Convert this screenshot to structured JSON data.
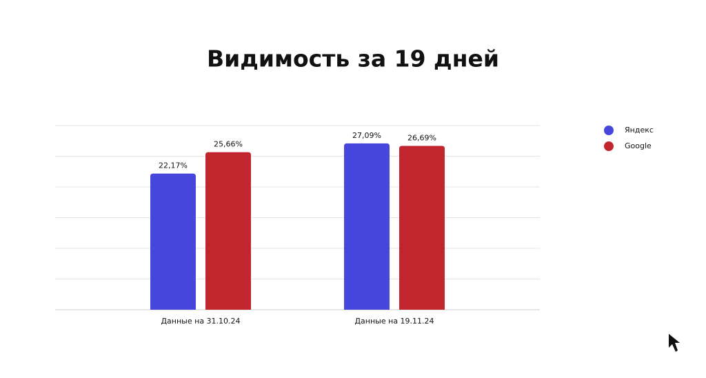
{
  "chart_data": {
    "type": "bar",
    "title": "Видимость за 19 дней",
    "categories": [
      "Данные на 31.10.24",
      "Данные на 19.11.24"
    ],
    "series": [
      {
        "name": "Яндекс",
        "color": "#4646dc",
        "values": [
          22.17,
          27.09
        ],
        "value_labels": [
          "22,17%",
          "27,09%"
        ]
      },
      {
        "name": "Google",
        "color": "#c1262f",
        "values": [
          25.66,
          26.69
        ],
        "value_labels": [
          "25,66%",
          "26,69%"
        ]
      }
    ],
    "ylim": [
      0,
      30
    ],
    "yticks": [
      0,
      5,
      10,
      15,
      20,
      25,
      30
    ],
    "grid": true,
    "legend": "upper right"
  }
}
